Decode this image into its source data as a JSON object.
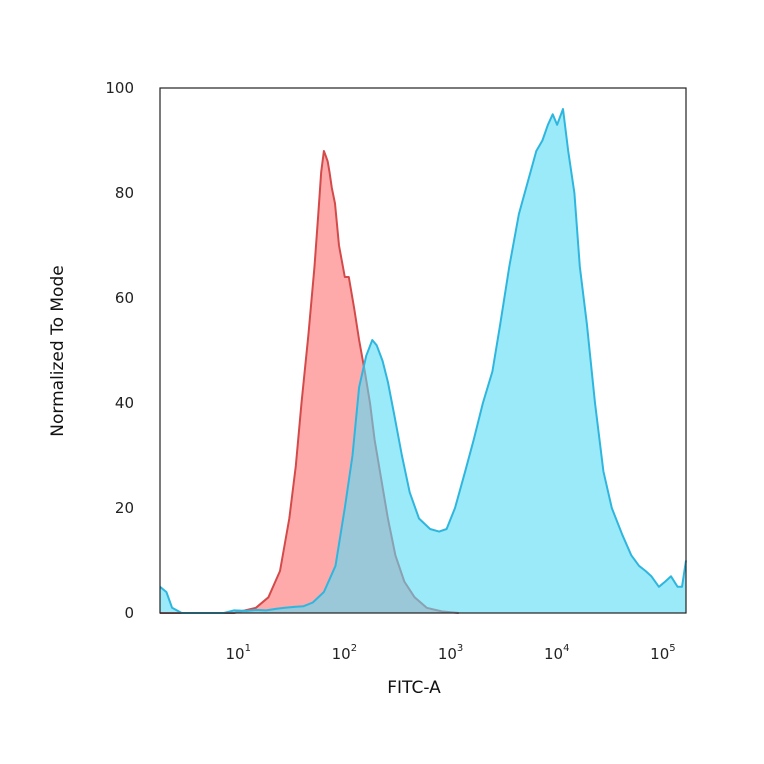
{
  "chart_data": {
    "type": "area",
    "xlabel": "FITC-A",
    "ylabel": "Normalized To Mode",
    "x_scale": "log",
    "xlim": [
      2,
      180000
    ],
    "ylim": [
      0,
      100
    ],
    "grid": false,
    "x_ticks": [
      {
        "value": 10,
        "base": "10",
        "exp": "1"
      },
      {
        "value": 100,
        "base": "10",
        "exp": "2"
      },
      {
        "value": 1000,
        "base": "10",
        "exp": "3"
      },
      {
        "value": 10000,
        "base": "10",
        "exp": "4"
      },
      {
        "value": 100000,
        "base": "10",
        "exp": "5"
      }
    ],
    "y_ticks": [
      {
        "value": 0,
        "label": "0"
      },
      {
        "value": 20,
        "label": "20"
      },
      {
        "value": 40,
        "label": "40"
      },
      {
        "value": 60,
        "label": "60"
      },
      {
        "value": 80,
        "label": "80"
      },
      {
        "value": 100,
        "label": "100"
      }
    ],
    "series": [
      {
        "fill": "#ff8e8e",
        "stroke": "#d44a4a",
        "opacity": 0.75,
        "x": [
          2,
          10,
          16,
          21,
          27,
          33,
          38,
          43,
          50,
          57,
          62,
          66,
          70,
          73,
          76,
          79,
          83,
          89,
          97,
          110,
          120,
          135,
          150,
          170,
          190,
          210,
          240,
          280,
          330,
          400,
          500,
          650,
          900,
          1300
        ],
        "y": [
          0,
          0,
          1,
          3,
          8,
          18,
          28,
          40,
          53,
          66,
          76,
          84,
          88,
          87,
          86,
          84,
          81,
          78,
          70,
          64,
          64,
          58,
          52,
          46,
          40,
          33,
          26,
          18,
          11,
          6,
          3,
          1,
          0.3,
          0
        ]
      },
      {
        "fill": "#57dcf6",
        "stroke": "#2fb6de",
        "opacity": 0.6,
        "x": [
          2,
          2.3,
          2.6,
          3.2,
          8,
          10,
          13,
          16,
          20,
          25,
          30,
          38,
          45,
          55,
          70,
          90,
          110,
          130,
          150,
          175,
          200,
          220,
          250,
          280,
          320,
          380,
          450,
          550,
          700,
          850,
          1000,
          1200,
          1500,
          1800,
          2200,
          2700,
          3200,
          3900,
          4800,
          5800,
          7000,
          8000,
          9000,
          10000,
          11000,
          12500,
          14000,
          16000,
          18000,
          21000,
          25000,
          30000,
          36000,
          45000,
          55000,
          65000,
          75000,
          85000,
          100000,
          115000,
          130000,
          150000,
          165000,
          180000
        ],
        "y": [
          5,
          4,
          1,
          0,
          0,
          0.5,
          0.4,
          0.6,
          0.5,
          0.8,
          1,
          1.2,
          1.3,
          2,
          4,
          9,
          20,
          30,
          43,
          49,
          52,
          51,
          48,
          44,
          38,
          30,
          23,
          18,
          16,
          15.5,
          16,
          20,
          27,
          33,
          40,
          46,
          55,
          66,
          76,
          82,
          88,
          90,
          93,
          95,
          93,
          96,
          88,
          80,
          66,
          55,
          40,
          27,
          20,
          15,
          11,
          9,
          8,
          7,
          5,
          6,
          7,
          5,
          5,
          10
        ]
      }
    ]
  }
}
